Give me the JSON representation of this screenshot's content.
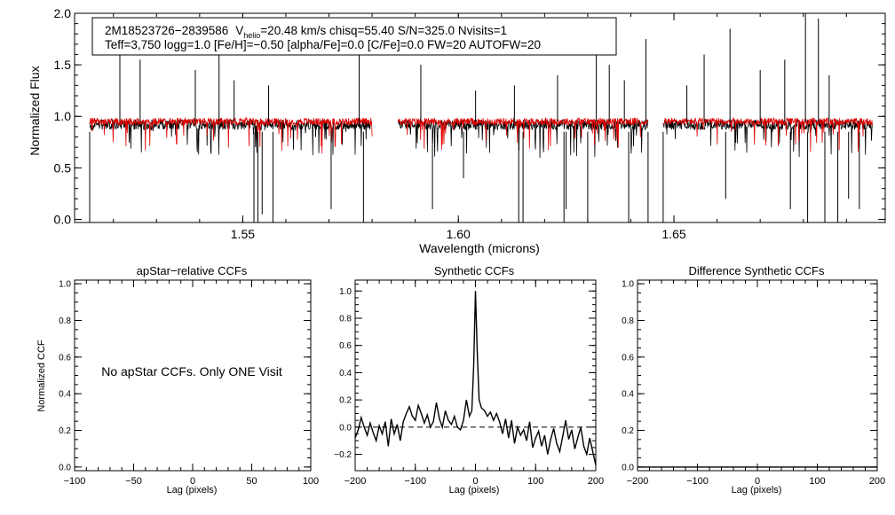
{
  "colors": {
    "observed": "#000000",
    "model": "#e00000",
    "axis": "#000000"
  },
  "chart_data": [
    {
      "id": "spectrum",
      "type": "line",
      "title": "",
      "xlabel": "Wavelength (microns)",
      "ylabel": "Normalized Flux",
      "xlim": [
        1.511,
        1.699
      ],
      "ylim": [
        -0.03,
        2.0
      ],
      "xticks": [
        {
          "value": 1.55,
          "label": "1.55"
        },
        {
          "value": 1.6,
          "label": "1.60"
        },
        {
          "value": 1.65,
          "label": "1.65"
        }
      ],
      "yticks": [
        {
          "value": 0.0,
          "label": "0.0"
        },
        {
          "value": 0.5,
          "label": "0.5"
        },
        {
          "value": 1.0,
          "label": "1.0"
        },
        {
          "value": 1.5,
          "label": "1.5"
        },
        {
          "value": 2.0,
          "label": "2.0"
        }
      ],
      "segments": [
        [
          1.5145,
          1.58
        ],
        [
          1.586,
          1.644
        ],
        [
          1.6475,
          1.696
        ]
      ],
      "emission_spikes": [
        [
          1.5215,
          1.85
        ],
        [
          1.5262,
          1.55
        ],
        [
          1.539,
          1.45
        ],
        [
          1.5445,
          1.6
        ],
        [
          1.548,
          1.35
        ],
        [
          1.556,
          1.3
        ],
        [
          1.577,
          1.7
        ],
        [
          1.5913,
          1.5
        ],
        [
          1.604,
          1.25
        ],
        [
          1.613,
          1.3
        ],
        [
          1.623,
          1.4
        ],
        [
          1.632,
          1.85
        ],
        [
          1.635,
          1.5
        ],
        [
          1.6385,
          1.35
        ],
        [
          1.6435,
          1.75
        ],
        [
          1.653,
          1.3
        ],
        [
          1.657,
          1.6
        ],
        [
          1.663,
          1.85
        ],
        [
          1.67,
          1.45
        ],
        [
          1.6757,
          1.55
        ],
        [
          1.6805,
          2.0
        ],
        [
          1.6835,
          1.95
        ],
        [
          1.686,
          1.4
        ]
      ],
      "absorption_lines": [
        [
          1.5145,
          -0.03
        ],
        [
          1.5526,
          -0.03
        ],
        [
          1.5535,
          -0.03
        ],
        [
          1.5545,
          0.05
        ],
        [
          1.557,
          -0.03
        ],
        [
          1.5705,
          0.1
        ],
        [
          1.578,
          -0.03
        ],
        [
          1.594,
          0.1
        ],
        [
          1.6012,
          0.4
        ],
        [
          1.614,
          -0.03
        ],
        [
          1.615,
          -0.03
        ],
        [
          1.6245,
          -0.03
        ],
        [
          1.625,
          0.1
        ],
        [
          1.63,
          -0.03
        ],
        [
          1.6395,
          -0.03
        ],
        [
          1.644,
          -0.03
        ],
        [
          1.6475,
          -0.03
        ],
        [
          1.662,
          0.2
        ],
        [
          1.677,
          0.1
        ],
        [
          1.681,
          -0.03
        ],
        [
          1.685,
          -0.03
        ],
        [
          1.688,
          -0.03
        ],
        [
          1.6905,
          0.2
        ],
        [
          1.693,
          0.1
        ]
      ],
      "series": [
        {
          "name": "observed",
          "baseline": 0.92,
          "noise": 0.05
        },
        {
          "name": "model",
          "baseline": 0.95,
          "noise": 0.035
        }
      ],
      "legend": {
        "star_id": "2M18523726−2839586",
        "vhelio_label": "V",
        "vhelio_sub": "helio",
        "line1_rest": "=20.48 km/s  chisq=55.40  S/N=325.0  Nvisits=1",
        "line2": "Teff=3,750 logg=1.0 [Fe/H]=−0.50 [alpha/Fe]=0.0 [C/Fe]=0.0 FW=20 AUTOFW=20"
      }
    },
    {
      "id": "apstar-ccf",
      "type": "line",
      "title": "apStar−relative CCFs",
      "xlabel": "Lag (pixels)",
      "ylabel": "Normalized CCF",
      "xlim": [
        -100,
        100
      ],
      "ylim": [
        -0.02,
        1.02
      ],
      "xticks": [
        {
          "value": -100,
          "label": "−100"
        },
        {
          "value": -50,
          "label": "−50"
        },
        {
          "value": 0,
          "label": "0"
        },
        {
          "value": 50,
          "label": "50"
        },
        {
          "value": 100,
          "label": "100"
        }
      ],
      "yticks": [
        {
          "value": 0.0,
          "label": "0.0"
        },
        {
          "value": 0.2,
          "label": "0.2"
        },
        {
          "value": 0.4,
          "label": "0.4"
        },
        {
          "value": 0.6,
          "label": "0.6"
        },
        {
          "value": 0.8,
          "label": "0.8"
        },
        {
          "value": 1.0,
          "label": "1.0"
        }
      ],
      "annotation": "No apStar CCFs.  Only ONE Visit",
      "series": []
    },
    {
      "id": "synthetic-ccf",
      "type": "line",
      "title": "Synthetic CCFs",
      "xlabel": "Lag (pixels)",
      "ylabel": "",
      "xlim": [
        -200,
        200
      ],
      "ylim": [
        -0.32,
        1.08
      ],
      "xticks": [
        {
          "value": -200,
          "label": "−200"
        },
        {
          "value": -100,
          "label": "−100"
        },
        {
          "value": 0,
          "label": "0"
        },
        {
          "value": 100,
          "label": "100"
        },
        {
          "value": 200,
          "label": "200"
        }
      ],
      "yticks": [
        {
          "value": -0.2,
          "label": "−0.2"
        },
        {
          "value": 0.0,
          "label": "0.0"
        },
        {
          "value": 0.2,
          "label": "0.2"
        },
        {
          "value": 0.4,
          "label": "0.4"
        },
        {
          "value": 0.6,
          "label": "0.6"
        },
        {
          "value": 0.8,
          "label": "0.8"
        },
        {
          "value": 1.0,
          "label": "1.0"
        }
      ],
      "reference_line": 0.0,
      "series": [
        {
          "name": "ccf",
          "x": [
            -200,
            -195,
            -190,
            -185,
            -180,
            -175,
            -170,
            -165,
            -160,
            -155,
            -150,
            -145,
            -140,
            -135,
            -130,
            -125,
            -120,
            -115,
            -110,
            -105,
            -100,
            -95,
            -90,
            -85,
            -80,
            -75,
            -70,
            -65,
            -60,
            -55,
            -50,
            -45,
            -40,
            -35,
            -30,
            -25,
            -20,
            -15,
            -10,
            -6,
            -3,
            0,
            3,
            6,
            10,
            15,
            20,
            25,
            30,
            35,
            40,
            45,
            50,
            55,
            60,
            65,
            70,
            75,
            80,
            85,
            90,
            95,
            100,
            105,
            110,
            115,
            120,
            125,
            130,
            135,
            140,
            145,
            150,
            155,
            160,
            165,
            170,
            175,
            180,
            185,
            190,
            195,
            200
          ],
          "values": [
            -0.08,
            -0.02,
            0.07,
            0.0,
            -0.06,
            0.03,
            -0.04,
            -0.1,
            0.01,
            -0.05,
            0.04,
            -0.14,
            0.06,
            -0.05,
            0.02,
            -0.1,
            0.04,
            0.1,
            0.15,
            0.08,
            0.05,
            0.16,
            0.1,
            0.03,
            0.09,
            0.0,
            0.04,
            0.18,
            0.06,
            0.0,
            0.12,
            0.05,
            0.02,
            0.08,
            0.0,
            -0.02,
            0.05,
            0.2,
            0.08,
            0.12,
            0.45,
            1.0,
            0.55,
            0.2,
            0.14,
            0.12,
            0.08,
            0.11,
            0.05,
            0.1,
            0.04,
            -0.05,
            0.06,
            -0.08,
            0.05,
            -0.12,
            0.0,
            -0.06,
            -0.02,
            -0.1,
            0.04,
            -0.15,
            -0.08,
            -0.03,
            -0.14,
            -0.06,
            -0.2,
            -0.09,
            -0.01,
            -0.12,
            -0.18,
            -0.07,
            0.05,
            -0.09,
            -0.02,
            -0.16,
            -0.08,
            0.0,
            -0.14,
            -0.2,
            -0.08,
            -0.18,
            -0.28
          ]
        }
      ]
    },
    {
      "id": "difference-ccf",
      "type": "line",
      "title": "Difference Synthetic CCFs",
      "xlabel": "Lag (pixels)",
      "ylabel": "",
      "xlim": [
        -200,
        200
      ],
      "ylim": [
        -0.02,
        1.02
      ],
      "xticks": [
        {
          "value": -200,
          "label": "−200"
        },
        {
          "value": -100,
          "label": "−100"
        },
        {
          "value": 0,
          "label": "0"
        },
        {
          "value": 100,
          "label": "100"
        },
        {
          "value": 200,
          "label": "200"
        }
      ],
      "yticks": [
        {
          "value": 0.0,
          "label": "0.0"
        },
        {
          "value": 0.2,
          "label": "0.2"
        },
        {
          "value": 0.4,
          "label": "0.4"
        },
        {
          "value": 0.6,
          "label": "0.6"
        },
        {
          "value": 0.8,
          "label": "0.8"
        },
        {
          "value": 1.0,
          "label": "1.0"
        }
      ],
      "series": [
        {
          "name": "difference",
          "x": [
            -200,
            200
          ],
          "values": [
            0.0,
            0.0
          ]
        }
      ]
    }
  ]
}
